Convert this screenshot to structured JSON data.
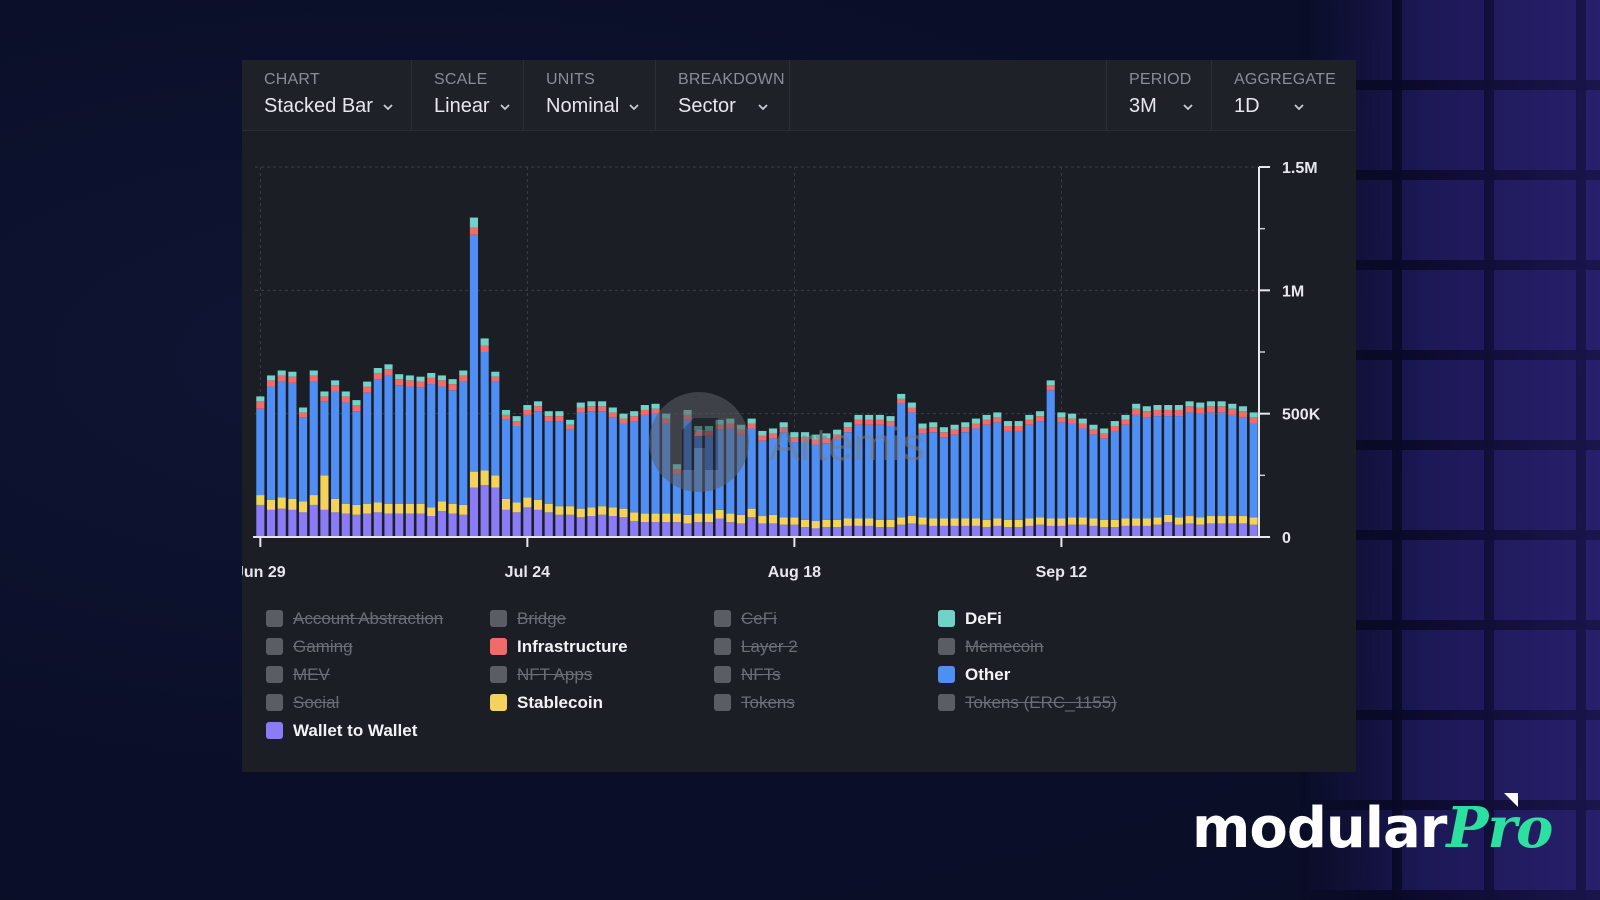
{
  "toolbar": {
    "chart": {
      "label": "CHART",
      "value": "Stacked Bar"
    },
    "scale": {
      "label": "SCALE",
      "value": "Linear"
    },
    "units": {
      "label": "UNITS",
      "value": "Nominal"
    },
    "breakdown": {
      "label": "BREAKDOWN",
      "value": "Sector"
    },
    "period": {
      "label": "PERIOD",
      "value": "3M"
    },
    "aggregate": {
      "label": "AGGREGATE",
      "value": "1D"
    }
  },
  "watermark": "Artemis",
  "brand": {
    "name_a": "modular",
    "name_b": "Pro"
  },
  "legend": [
    {
      "label": "Account Abstraction",
      "active": false,
      "color": "#5a5d64"
    },
    {
      "label": "Bridge",
      "active": false,
      "color": "#5a5d64"
    },
    {
      "label": "CeFi",
      "active": false,
      "color": "#5a5d64"
    },
    {
      "label": "DeFi",
      "active": true,
      "color": "#6fd3c8"
    },
    {
      "label": "Gaming",
      "active": false,
      "color": "#5a5d64"
    },
    {
      "label": "Infrastructure",
      "active": true,
      "color": "#f26b6b"
    },
    {
      "label": "Layer 2",
      "active": false,
      "color": "#5a5d64"
    },
    {
      "label": "Memecoin",
      "active": false,
      "color": "#5a5d64"
    },
    {
      "label": "MEV",
      "active": false,
      "color": "#5a5d64"
    },
    {
      "label": "NFT Apps",
      "active": false,
      "color": "#5a5d64"
    },
    {
      "label": "NFTs",
      "active": false,
      "color": "#5a5d64"
    },
    {
      "label": "Other",
      "active": true,
      "color": "#4f8ff5"
    },
    {
      "label": "Social",
      "active": false,
      "color": "#5a5d64"
    },
    {
      "label": "Stablecoin",
      "active": true,
      "color": "#f3d35c"
    },
    {
      "label": "Tokens",
      "active": false,
      "color": "#5a5d64"
    },
    {
      "label": "Tokens (ERC_1155)",
      "active": false,
      "color": "#5a5d64"
    },
    {
      "label": "Wallet to Wallet",
      "active": true,
      "color": "#8b7bf7"
    }
  ],
  "chart_data": {
    "type": "bar",
    "stacked": true,
    "title": "",
    "xlabel": "",
    "ylabel": "",
    "x_tick_labels": [
      "Jun 29",
      "Jul 24",
      "Aug 18",
      "Sep 12"
    ],
    "y_tick_labels": [
      "0",
      "500K",
      "1M",
      "1.5M"
    ],
    "ylim": [
      0,
      1500000
    ],
    "y_axis_side": "right",
    "grid": true,
    "legend_placement": "bottom",
    "series_order": [
      "Wallet to Wallet",
      "Stablecoin",
      "Other",
      "Infrastructure",
      "DeFi"
    ],
    "series_colors": {
      "Wallet to Wallet": "#8b7bf7",
      "Stablecoin": "#f3d35c",
      "Other": "#4f8ff5",
      "Infrastructure": "#f26b6b",
      "DeFi": "#6fd3c8"
    },
    "categories": [
      "Jun 29",
      "Jun 30",
      "Jul 1",
      "Jul 2",
      "Jul 3",
      "Jul 4",
      "Jul 5",
      "Jul 6",
      "Jul 7",
      "Jul 8",
      "Jul 9",
      "Jul 10",
      "Jul 11",
      "Jul 12",
      "Jul 13",
      "Jul 14",
      "Jul 15",
      "Jul 16",
      "Jul 17",
      "Jul 18",
      "Jul 19",
      "Jul 20",
      "Jul 21",
      "Jul 22",
      "Jul 23",
      "Jul 24",
      "Jul 25",
      "Jul 26",
      "Jul 27",
      "Jul 28",
      "Jul 29",
      "Jul 30",
      "Jul 31",
      "Aug 1",
      "Aug 2",
      "Aug 3",
      "Aug 4",
      "Aug 5",
      "Aug 6",
      "Aug 7",
      "Aug 8",
      "Aug 9",
      "Aug 10",
      "Aug 11",
      "Aug 12",
      "Aug 13",
      "Aug 14",
      "Aug 15",
      "Aug 16",
      "Aug 17",
      "Aug 18",
      "Aug 19",
      "Aug 20",
      "Aug 21",
      "Aug 22",
      "Aug 23",
      "Aug 24",
      "Aug 25",
      "Aug 26",
      "Aug 27",
      "Aug 28",
      "Aug 29",
      "Aug 30",
      "Aug 31",
      "Sep 1",
      "Sep 2",
      "Sep 3",
      "Sep 4",
      "Sep 5",
      "Sep 6",
      "Sep 7",
      "Sep 8",
      "Sep 9",
      "Sep 10",
      "Sep 11",
      "Sep 12",
      "Sep 13",
      "Sep 14",
      "Sep 15",
      "Sep 16",
      "Sep 17",
      "Sep 18",
      "Sep 19",
      "Sep 20",
      "Sep 21",
      "Sep 22",
      "Sep 23",
      "Sep 24",
      "Sep 25",
      "Sep 26",
      "Sep 27",
      "Sep 28",
      "Sep 29",
      "Sep 30"
    ],
    "series": [
      {
        "name": "Wallet to Wallet",
        "values": [
          130000,
          110000,
          115000,
          110000,
          100000,
          130000,
          110000,
          100000,
          95000,
          90000,
          95000,
          100000,
          95000,
          95000,
          95000,
          95000,
          85000,
          105000,
          95000,
          90000,
          200000,
          210000,
          200000,
          110000,
          100000,
          120000,
          110000,
          100000,
          90000,
          90000,
          80000,
          85000,
          90000,
          85000,
          80000,
          65000,
          60000,
          60000,
          60000,
          60000,
          55000,
          60000,
          60000,
          75000,
          60000,
          55000,
          80000,
          55000,
          55000,
          50000,
          50000,
          40000,
          35000,
          40000,
          40000,
          45000,
          45000,
          45000,
          40000,
          40000,
          50000,
          55000,
          50000,
          45000,
          45000,
          45000,
          45000,
          45000,
          40000,
          45000,
          40000,
          40000,
          45000,
          50000,
          45000,
          45000,
          50000,
          50000,
          45000,
          40000,
          40000,
          45000,
          45000,
          45000,
          50000,
          60000,
          50000,
          55000,
          50000,
          55000,
          55000,
          55000,
          55000,
          50000
        ]
      },
      {
        "name": "Stablecoin",
        "values": [
          40000,
          40000,
          45000,
          45000,
          45000,
          40000,
          140000,
          55000,
          40000,
          40000,
          40000,
          40000,
          40000,
          40000,
          40000,
          40000,
          35000,
          40000,
          40000,
          40000,
          65000,
          60000,
          50000,
          45000,
          40000,
          40000,
          40000,
          35000,
          35000,
          35000,
          35000,
          35000,
          35000,
          35000,
          35000,
          35000,
          35000,
          35000,
          35000,
          35000,
          35000,
          35000,
          35000,
          35000,
          35000,
          35000,
          35000,
          30000,
          35000,
          30000,
          30000,
          30000,
          30000,
          30000,
          30000,
          30000,
          30000,
          30000,
          30000,
          30000,
          30000,
          30000,
          30000,
          30000,
          30000,
          30000,
          30000,
          30000,
          30000,
          30000,
          30000,
          30000,
          30000,
          30000,
          30000,
          30000,
          30000,
          30000,
          30000,
          30000,
          30000,
          30000,
          30000,
          30000,
          30000,
          30000,
          30000,
          30000,
          30000,
          30000,
          30000,
          30000,
          30000,
          30000
        ]
      },
      {
        "name": "Other",
        "values": [
          350000,
          460000,
          470000,
          470000,
          340000,
          460000,
          300000,
          435000,
          410000,
          380000,
          450000,
          500000,
          520000,
          480000,
          475000,
          470000,
          500000,
          465000,
          460000,
          500000,
          960000,
          480000,
          380000,
          320000,
          310000,
          335000,
          360000,
          335000,
          345000,
          310000,
          390000,
          390000,
          385000,
          365000,
          345000,
          370000,
          400000,
          405000,
          365000,
          160000,
          385000,
          315000,
          315000,
          325000,
          345000,
          325000,
          325000,
          305000,
          310000,
          345000,
          305000,
          315000,
          310000,
          310000,
          325000,
          350000,
          380000,
          380000,
          385000,
          380000,
          460000,
          420000,
          340000,
          350000,
          330000,
          340000,
          350000,
          365000,
          385000,
          390000,
          360000,
          360000,
          380000,
          390000,
          520000,
          390000,
          380000,
          360000,
          340000,
          330000,
          360000,
          380000,
          420000,
          410000,
          410000,
          400000,
          410000,
          420000,
          420000,
          420000,
          420000,
          410000,
          400000,
          380000
        ]
      },
      {
        "name": "Infrastructure",
        "values": [
          30000,
          25000,
          25000,
          25000,
          20000,
          25000,
          20000,
          25000,
          25000,
          25000,
          25000,
          25000,
          25000,
          25000,
          25000,
          25000,
          25000,
          25000,
          25000,
          25000,
          30000,
          25000,
          20000,
          20000,
          20000,
          20000,
          20000,
          20000,
          20000,
          20000,
          20000,
          20000,
          20000,
          20000,
          20000,
          20000,
          20000,
          20000,
          20000,
          20000,
          20000,
          20000,
          20000,
          20000,
          20000,
          20000,
          20000,
          20000,
          20000,
          20000,
          20000,
          20000,
          20000,
          20000,
          20000,
          20000,
          20000,
          20000,
          20000,
          20000,
          20000,
          20000,
          20000,
          20000,
          20000,
          20000,
          20000,
          20000,
          20000,
          20000,
          20000,
          20000,
          20000,
          20000,
          20000,
          20000,
          20000,
          20000,
          20000,
          20000,
          20000,
          20000,
          25000,
          25000,
          25000,
          25000,
          25000,
          25000,
          25000,
          25000,
          25000,
          25000,
          25000,
          25000
        ]
      },
      {
        "name": "DeFi",
        "values": [
          20000,
          20000,
          20000,
          20000,
          20000,
          20000,
          20000,
          20000,
          20000,
          20000,
          20000,
          20000,
          20000,
          20000,
          20000,
          20000,
          20000,
          20000,
          20000,
          20000,
          40000,
          30000,
          20000,
          20000,
          20000,
          20000,
          20000,
          20000,
          20000,
          20000,
          20000,
          20000,
          20000,
          20000,
          20000,
          20000,
          20000,
          20000,
          20000,
          20000,
          20000,
          20000,
          20000,
          20000,
          20000,
          20000,
          20000,
          20000,
          20000,
          20000,
          20000,
          20000,
          20000,
          20000,
          20000,
          20000,
          20000,
          20000,
          20000,
          20000,
          20000,
          20000,
          20000,
          20000,
          20000,
          20000,
          20000,
          20000,
          20000,
          20000,
          20000,
          20000,
          20000,
          20000,
          20000,
          20000,
          20000,
          20000,
          20000,
          20000,
          20000,
          20000,
          20000,
          20000,
          20000,
          20000,
          20000,
          20000,
          20000,
          20000,
          20000,
          20000,
          20000,
          20000
        ]
      }
    ]
  }
}
